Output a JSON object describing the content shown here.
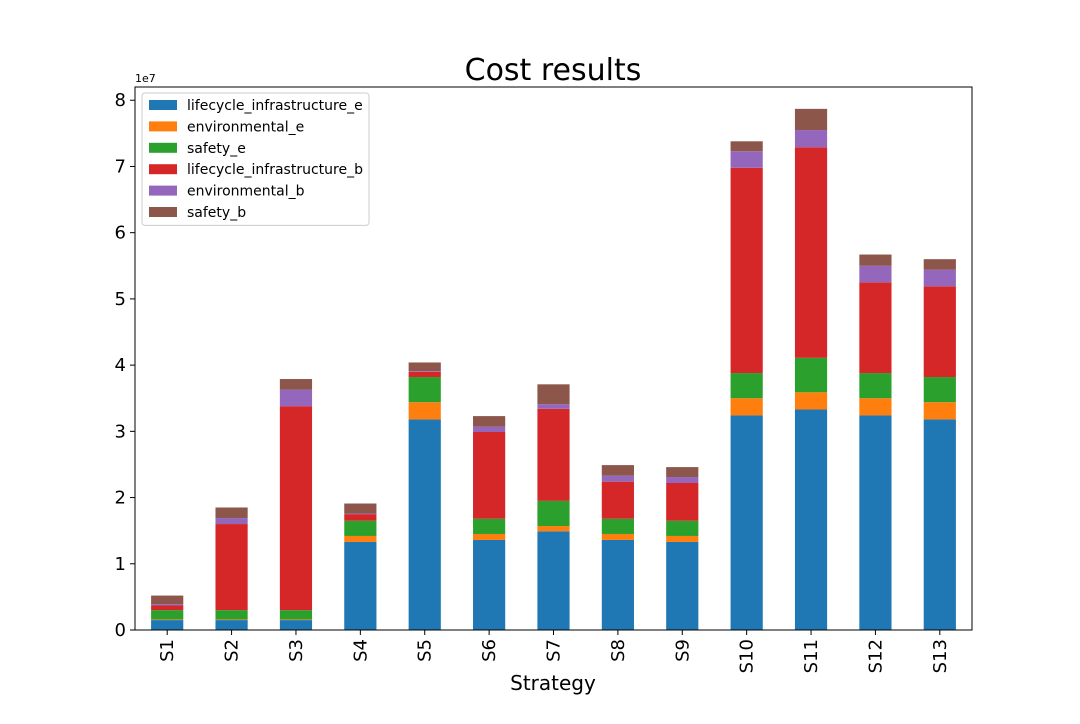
{
  "chart_data": {
    "type": "bar",
    "stacked": true,
    "title": "Cost results",
    "xlabel": "Strategy",
    "ylabel": "",
    "y_offset_label": "1e7",
    "ylim": [
      0,
      82000000
    ],
    "yticks": [
      0,
      10000000,
      20000000,
      30000000,
      40000000,
      50000000,
      60000000,
      70000000,
      80000000
    ],
    "ytick_labels": [
      "0",
      "1",
      "2",
      "3",
      "4",
      "5",
      "6",
      "7",
      "8"
    ],
    "grid": false,
    "legend_position": "top-left",
    "categories": [
      "S1",
      "S2",
      "S3",
      "S4",
      "S5",
      "S6",
      "S7",
      "S8",
      "S9",
      "S10",
      "S11",
      "S12",
      "S13"
    ],
    "series": [
      {
        "name": "lifecycle_infrastructure_e",
        "color": "#1f77b4",
        "values": [
          1500000,
          1500000,
          1500000,
          13300000,
          31800000,
          13600000,
          14900000,
          13600000,
          13300000,
          32400000,
          33300000,
          32400000,
          31800000
        ]
      },
      {
        "name": "environmental_e",
        "color": "#ff7f0e",
        "values": [
          100000,
          100000,
          100000,
          900000,
          2600000,
          900000,
          800000,
          900000,
          900000,
          2600000,
          2600000,
          2600000,
          2600000
        ]
      },
      {
        "name": "safety_e",
        "color": "#2ca02c",
        "values": [
          1400000,
          1400000,
          1400000,
          2300000,
          3800000,
          2300000,
          3800000,
          2300000,
          2300000,
          3800000,
          5200000,
          3800000,
          3800000
        ]
      },
      {
        "name": "lifecycle_infrastructure_b",
        "color": "#d62728",
        "values": [
          700000,
          13000000,
          30800000,
          1000000,
          800000,
          13100000,
          13900000,
          5600000,
          5700000,
          31000000,
          31800000,
          13700000,
          13700000
        ]
      },
      {
        "name": "environmental_b",
        "color": "#9467bd",
        "values": [
          200000,
          900000,
          2500000,
          100000,
          100000,
          800000,
          700000,
          900000,
          900000,
          2500000,
          2600000,
          2500000,
          2500000
        ]
      },
      {
        "name": "safety_b",
        "color": "#8c564b",
        "values": [
          1300000,
          1600000,
          1600000,
          1500000,
          1300000,
          1600000,
          3000000,
          1600000,
          1500000,
          1500000,
          3200000,
          1700000,
          1600000
        ]
      }
    ]
  }
}
